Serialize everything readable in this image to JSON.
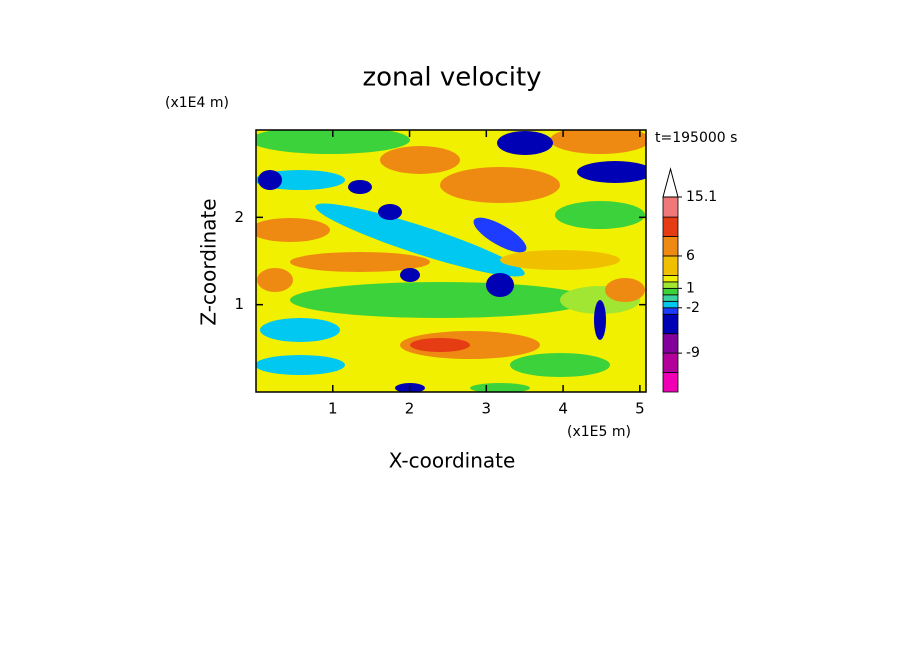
{
  "chart_data": {
    "type": "contour",
    "title": "zonal velocity",
    "x_label": "X-coordinate",
    "y_label": "Z-coordinate",
    "x_unit": "(x1E5 m)",
    "y_unit": "(x1E4 m)",
    "annotation": "t=195000 s",
    "xlim": [
      0,
      5.08
    ],
    "xticks": [
      1,
      2,
      3,
      4,
      5
    ],
    "ylim": [
      0,
      3
    ],
    "yticks": [
      1,
      2
    ],
    "colorbar": {
      "clim": [
        -15,
        15.1
      ],
      "levels": [
        -15,
        -12,
        -9,
        -6,
        -3,
        -2,
        -1,
        0,
        1,
        2,
        3,
        6,
        9,
        12,
        15.1
      ],
      "colors": [
        "#f000b4",
        "#b4009b",
        "#82009b",
        "#0000b4",
        "#1e3cff",
        "#00c8f0",
        "#3cd2a0",
        "#3cd23c",
        "#a0e632",
        "#f0f000",
        "#f0c000",
        "#ee8a12",
        "#e63c14",
        "#f07878",
        "#f5b4b4"
      ],
      "ticks": [
        {
          "value": 15.1,
          "label": "15.1"
        },
        6,
        1,
        -2,
        -9
      ]
    }
  }
}
